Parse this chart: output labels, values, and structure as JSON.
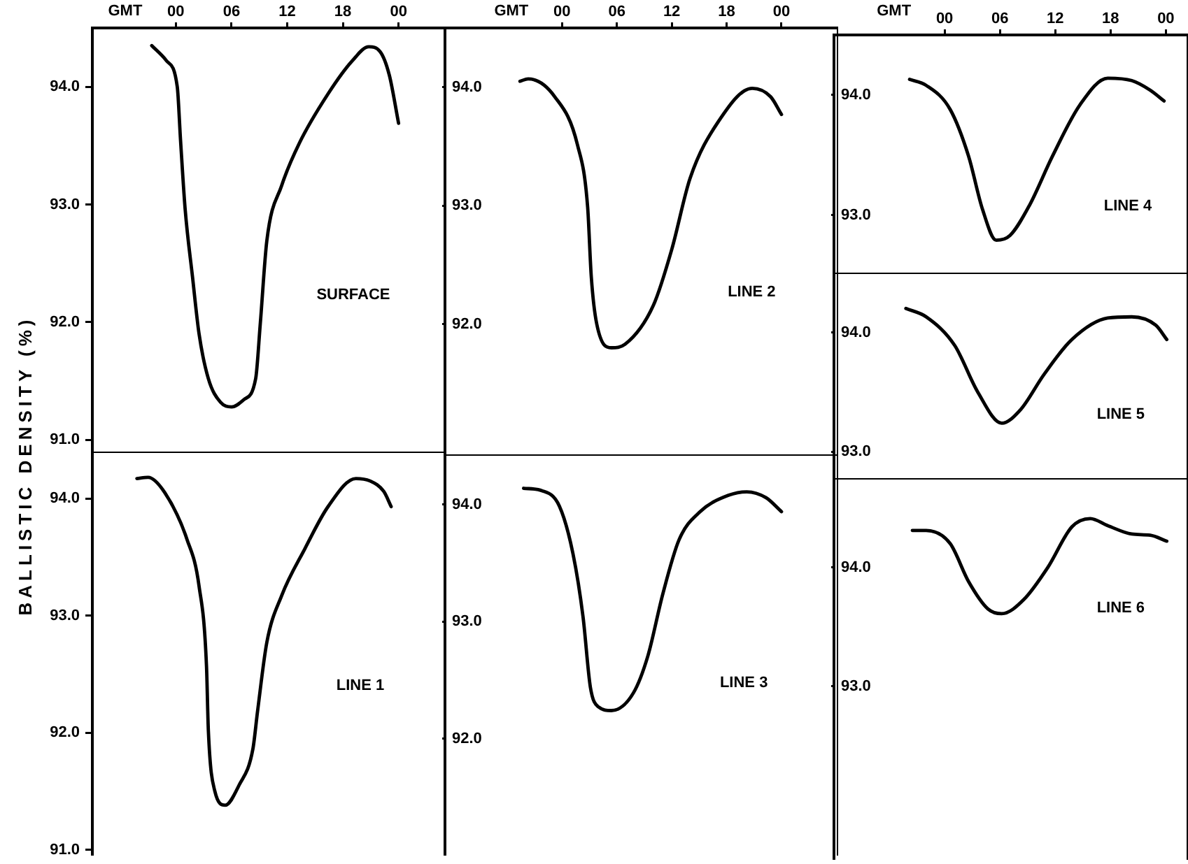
{
  "chart_data": [
    {
      "type": "line",
      "title": "SURFACE",
      "xlabel": "GMT",
      "ylabel": "BALLISTIC DENSITY (%)",
      "color": "#000000",
      "marker": "none",
      "line_style": "solid",
      "grid": false,
      "legend": false,
      "x": [
        -2.6,
        -1.0,
        0.15,
        0.5,
        1.0,
        1.8,
        2.5,
        3.5,
        4.8,
        6.0,
        7.3,
        8.6,
        9.1,
        9.8,
        11.4,
        13.3,
        16.4,
        19.0,
        20.8,
        22.0,
        23.0,
        24.0
      ],
      "values": [
        94.35,
        94.22,
        94.0,
        93.55,
        92.96,
        92.38,
        91.9,
        91.52,
        91.32,
        91.28,
        91.34,
        91.52,
        91.99,
        92.69,
        93.16,
        93.52,
        93.94,
        94.22,
        94.34,
        94.3,
        94.1,
        93.69
      ],
      "xlim": [
        -9,
        29
      ],
      "xticks": [
        {
          "value": 0,
          "label": "00"
        },
        {
          "value": 6,
          "label": "06"
        },
        {
          "value": 12,
          "label": "12"
        },
        {
          "value": 18,
          "label": "18"
        },
        {
          "value": 24,
          "label": "00"
        }
      ],
      "ylim": [
        90.9,
        94.5
      ],
      "yticks": [
        {
          "value": 91,
          "label": "91.0"
        },
        {
          "value": 92,
          "label": "92.0"
        },
        {
          "value": 93,
          "label": "93.0"
        },
        {
          "value": 94,
          "label": "94.0"
        }
      ]
    },
    {
      "type": "line",
      "title": "LINE 1",
      "color": "#000000",
      "marker": "none",
      "line_style": "solid",
      "grid": false,
      "legend": false,
      "tick_labels": "y",
      "x": [
        -4.2,
        -3.0,
        -1.2,
        1.2,
        2.5,
        3.3,
        3.5,
        4.2,
        5.3,
        6.8,
        8.3,
        8.8,
        9.8,
        11.4,
        13.9,
        16.4,
        19.4,
        20.9,
        22.4,
        23.2
      ],
      "values": [
        94.17,
        94.18,
        94.05,
        93.65,
        93.25,
        92.57,
        92.02,
        91.5,
        91.38,
        91.55,
        91.86,
        92.18,
        92.77,
        93.17,
        93.57,
        93.93,
        94.17,
        94.15,
        94.06,
        93.93
      ],
      "xlim": [
        -9,
        29
      ],
      "ylim": [
        90.95,
        94.4
      ],
      "yticks": [
        {
          "value": 91,
          "label": "91.0"
        },
        {
          "value": 92,
          "label": "92.0"
        },
        {
          "value": 93,
          "label": "93.0"
        },
        {
          "value": 94,
          "label": "94.0"
        }
      ]
    },
    {
      "type": "line",
      "title": "LINE 2",
      "xlabel": "GMT",
      "color": "#000000",
      "marker": "none",
      "line_style": "solid",
      "grid": false,
      "legend": false,
      "x": [
        -4.6,
        -3.7,
        -0.8,
        1.7,
        2.8,
        3.2,
        3.8,
        5.4,
        6.9,
        10.0,
        12.0,
        14.0,
        17.1,
        20.8,
        22.8,
        24.0
      ],
      "values": [
        94.05,
        94.07,
        93.92,
        93.51,
        92.99,
        92.4,
        92.0,
        91.8,
        91.83,
        92.16,
        92.63,
        93.23,
        93.71,
        93.99,
        93.92,
        93.77
      ],
      "xlim": [
        -12.8,
        30.2
      ],
      "xticks": [
        {
          "value": 0,
          "label": "00"
        },
        {
          "value": 6,
          "label": "06"
        },
        {
          "value": 12,
          "label": "12"
        },
        {
          "value": 18,
          "label": "18"
        },
        {
          "value": 24,
          "label": "00"
        }
      ],
      "ylim": [
        90.9,
        94.5
      ],
      "yticks": [
        {
          "value": 92,
          "label": "92.0"
        },
        {
          "value": 93,
          "label": "93.0"
        },
        {
          "value": 94,
          "label": "94.0"
        }
      ]
    },
    {
      "type": "line",
      "title": "LINE 3",
      "color": "#000000",
      "marker": "none",
      "line_style": "solid",
      "grid": false,
      "legend": false,
      "tick_labels": "y",
      "x": [
        -4.2,
        -2.2,
        -0.3,
        1.2,
        2.3,
        3.1,
        4.0,
        5.4,
        7.8,
        9.4,
        11.0,
        12.8,
        15.1,
        18.2,
        20.2,
        22.3,
        24.0
      ],
      "values": [
        94.14,
        94.12,
        93.99,
        93.58,
        93.04,
        92.44,
        92.27,
        92.24,
        92.39,
        92.71,
        93.23,
        93.7,
        93.94,
        94.08,
        94.11,
        94.06,
        93.94
      ],
      "xlim": [
        -12.8,
        30.2
      ],
      "ylim": [
        91.0,
        94.43
      ],
      "yticks": [
        {
          "value": 92,
          "label": "92.0"
        },
        {
          "value": 93,
          "label": "93.0"
        },
        {
          "value": 94,
          "label": "94.0"
        }
      ]
    },
    {
      "type": "line",
      "title": "LINE 4",
      "xlabel": "GMT",
      "color": "#000000",
      "marker": "none",
      "line_style": "solid",
      "grid": false,
      "legend": false,
      "x": [
        -3.8,
        -2.0,
        0.6,
        2.6,
        4.1,
        5.6,
        7.1,
        9.2,
        11.7,
        14.7,
        17.7,
        20.3,
        22.3,
        23.8
      ],
      "values": [
        94.13,
        94.08,
        93.88,
        93.49,
        93.05,
        92.79,
        92.83,
        93.08,
        93.49,
        93.92,
        94.14,
        94.12,
        94.04,
        93.95
      ],
      "xlim": [
        -12,
        26.4
      ],
      "xticks": [
        {
          "value": 0,
          "label": "00"
        },
        {
          "value": 6,
          "label": "06"
        },
        {
          "value": 12,
          "label": "12"
        },
        {
          "value": 18,
          "label": "18"
        },
        {
          "value": 24,
          "label": "00"
        }
      ],
      "ylim": [
        92.52,
        94.5
      ],
      "yticks": [
        {
          "value": 93,
          "label": "93.0"
        },
        {
          "value": 94,
          "label": "94.0"
        }
      ]
    },
    {
      "type": "line",
      "title": "LINE 5",
      "color": "#000000",
      "marker": "none",
      "line_style": "solid",
      "grid": false,
      "legend": false,
      "tick_labels": "y",
      "x": [
        -4.2,
        -2.0,
        1.1,
        3.6,
        6.2,
        8.2,
        10.8,
        13.8,
        17.7,
        20.3,
        22.9,
        24.1
      ],
      "values": [
        94.2,
        94.13,
        93.89,
        93.5,
        93.24,
        93.35,
        93.65,
        93.94,
        94.12,
        94.13,
        94.06,
        93.94
      ],
      "xlim": [
        -12,
        26.4
      ],
      "ylim": [
        92.78,
        94.5
      ],
      "yticks": [
        {
          "value": 93,
          "label": "93.0"
        },
        {
          "value": 94,
          "label": "94.0"
        }
      ]
    },
    {
      "type": "line",
      "title": "LINE 6",
      "color": "#000000",
      "marker": "none",
      "line_style": "solid",
      "grid": false,
      "legend": false,
      "tick_labels": "y",
      "x": [
        -3.5,
        -2.0,
        0.6,
        2.6,
        4.7,
        6.2,
        8.6,
        11.2,
        13.8,
        15.8,
        17.7,
        20.3,
        22.3,
        24.1
      ],
      "values": [
        94.31,
        94.31,
        94.2,
        93.88,
        93.65,
        93.61,
        93.73,
        94.0,
        94.34,
        94.41,
        94.35,
        94.28,
        94.27,
        94.22
      ],
      "xlim": [
        -12,
        26.4
      ],
      "ylim": [
        91.54,
        94.75
      ],
      "yticks": [
        {
          "value": 93,
          "label": "93.0"
        },
        {
          "value": 94,
          "label": "94.0"
        }
      ]
    }
  ]
}
